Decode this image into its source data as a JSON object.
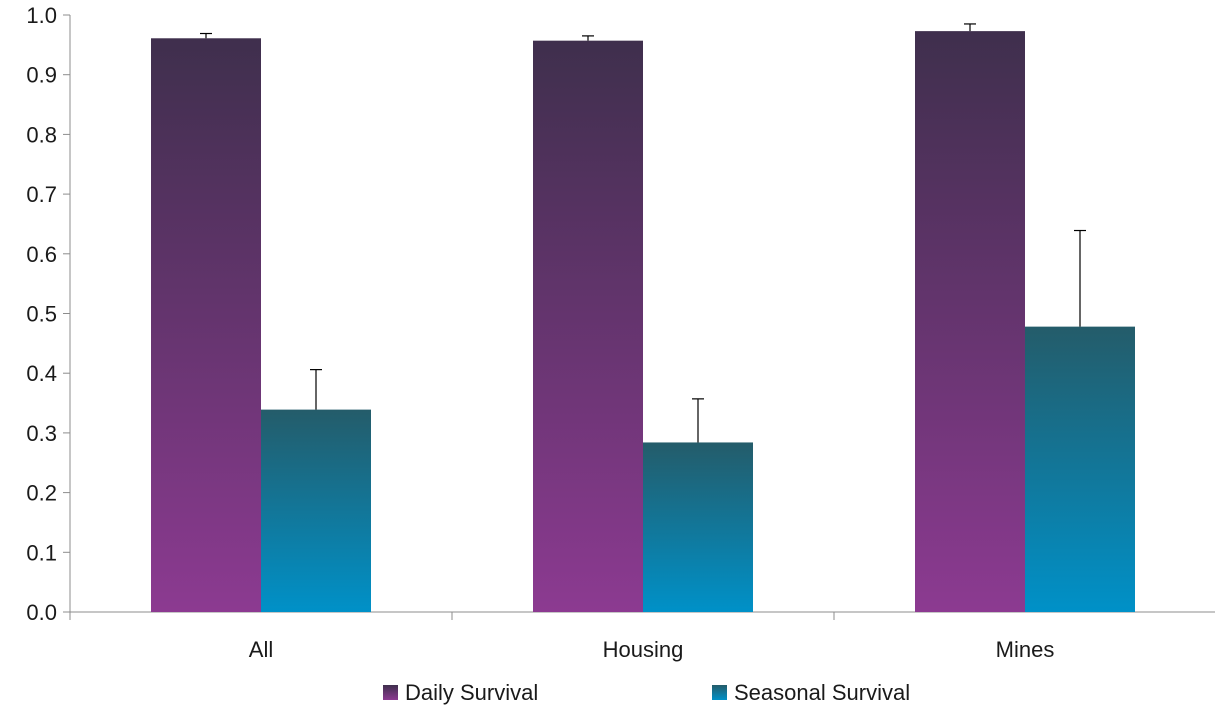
{
  "chart_data": {
    "type": "bar",
    "title": "",
    "xlabel": "",
    "ylabel": "",
    "categories": [
      "All",
      "Housing",
      "Mines"
    ],
    "ylim": [
      0.0,
      1.0
    ],
    "yticks": [
      "0.0",
      "0.1",
      "0.2",
      "0.3",
      "0.4",
      "0.5",
      "0.6",
      "0.7",
      "0.8",
      "0.9",
      "1.0"
    ],
    "grid": false,
    "legend_position": "bottom",
    "series": [
      {
        "name": "Daily Survival",
        "values": [
          0.961,
          0.957,
          0.973
        ],
        "error_upper": [
          0.008,
          0.008,
          0.012
        ],
        "color_top": "#3f2f4d",
        "color_bottom": "#8c3a91"
      },
      {
        "name": "Seasonal Survival",
        "values": [
          0.339,
          0.284,
          0.478
        ],
        "error_upper": [
          0.067,
          0.073,
          0.161
        ],
        "color_top": "#245c6a",
        "color_bottom": "#0091c8"
      }
    ]
  }
}
